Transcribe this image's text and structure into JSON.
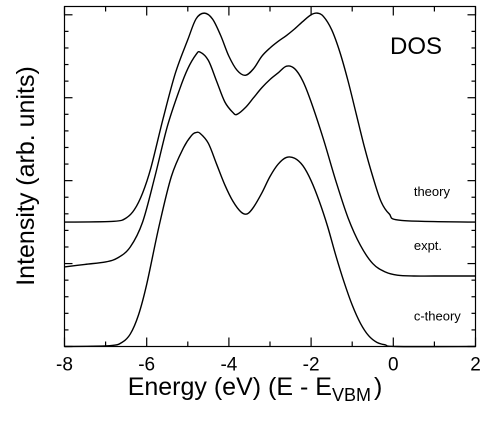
{
  "chart_data": {
    "type": "line",
    "title": "DOS",
    "xlabel": "Energy (eV) (E - E",
    "xlabel_sub": "VBM",
    "xlabel_tail": ")",
    "ylabel": "Intensity (arb. units)",
    "xlim": [
      -8,
      2
    ],
    "ylim": [
      0,
      4.1
    ],
    "xticks": [
      -8,
      -6,
      -4,
      -2,
      0,
      2
    ],
    "x_minor_step": 1,
    "y_minor_step": 0.2,
    "y_major_step": 1,
    "yticklabels": false,
    "grid": false,
    "legend": "none",
    "series": [
      {
        "name": "theory",
        "x": [
          -8,
          -6.8,
          -6.5,
          -6.3,
          -6.1,
          -5.9,
          -5.6,
          -5.3,
          -5.0,
          -4.8,
          -4.6,
          -4.4,
          -4.2,
          -4.0,
          -3.8,
          -3.6,
          -3.4,
          -3.2,
          -3.0,
          -2.8,
          -2.6,
          -2.4,
          -2.2,
          -2.0,
          -1.85,
          -1.7,
          -1.5,
          -1.3,
          -1.1,
          -0.9,
          -0.7,
          -0.5,
          -0.3,
          -0.1,
          0.2,
          2
        ],
        "y": [
          1.5,
          1.51,
          1.55,
          1.65,
          1.85,
          2.15,
          2.75,
          3.3,
          3.7,
          3.95,
          4.02,
          3.95,
          3.75,
          3.5,
          3.33,
          3.27,
          3.35,
          3.5,
          3.6,
          3.68,
          3.75,
          3.83,
          3.92,
          4.0,
          4.02,
          3.98,
          3.82,
          3.55,
          3.2,
          2.8,
          2.4,
          2.05,
          1.75,
          1.6,
          1.52,
          1.5
        ]
      },
      {
        "name": "expt.",
        "x": [
          -8,
          -7.5,
          -7.0,
          -6.7,
          -6.4,
          -6.1,
          -5.8,
          -5.5,
          -5.2,
          -5.0,
          -4.8,
          -4.7,
          -4.5,
          -4.3,
          -4.1,
          -3.9,
          -3.8,
          -3.6,
          -3.4,
          -3.2,
          -3.0,
          -2.8,
          -2.6,
          -2.4,
          -2.2,
          -2.0,
          -1.7,
          -1.4,
          -1.1,
          -0.8,
          -0.5,
          -0.2,
          0.1,
          0.5,
          1.0,
          2
        ],
        "y": [
          0.96,
          0.99,
          1.02,
          1.07,
          1.2,
          1.5,
          2.05,
          2.65,
          3.1,
          3.35,
          3.52,
          3.55,
          3.45,
          3.2,
          2.95,
          2.82,
          2.8,
          2.88,
          3.0,
          3.12,
          3.22,
          3.3,
          3.38,
          3.35,
          3.2,
          2.95,
          2.5,
          2.0,
          1.55,
          1.22,
          1.0,
          0.9,
          0.86,
          0.85,
          0.85,
          0.85
        ]
      },
      {
        "name": "c-theory",
        "x": [
          -8,
          -6.9,
          -6.6,
          -6.4,
          -6.2,
          -6.0,
          -5.7,
          -5.4,
          -5.1,
          -4.9,
          -4.8,
          -4.7,
          -4.5,
          -4.3,
          -4.1,
          -3.9,
          -3.7,
          -3.55,
          -3.4,
          -3.2,
          -3.0,
          -2.8,
          -2.6,
          -2.4,
          -2.2,
          -2.0,
          -1.8,
          -1.6,
          -1.4,
          -1.2,
          -1.0,
          -0.8,
          -0.6,
          -0.4,
          -0.2,
          0.1,
          2
        ],
        "y": [
          0.0,
          0.01,
          0.05,
          0.15,
          0.38,
          0.75,
          1.45,
          2.05,
          2.4,
          2.55,
          2.58,
          2.57,
          2.45,
          2.2,
          1.95,
          1.75,
          1.62,
          1.6,
          1.68,
          1.85,
          2.05,
          2.2,
          2.28,
          2.27,
          2.18,
          2.0,
          1.75,
          1.45,
          1.1,
          0.78,
          0.5,
          0.28,
          0.13,
          0.05,
          0.02,
          0.0,
          0.0
        ]
      }
    ]
  }
}
